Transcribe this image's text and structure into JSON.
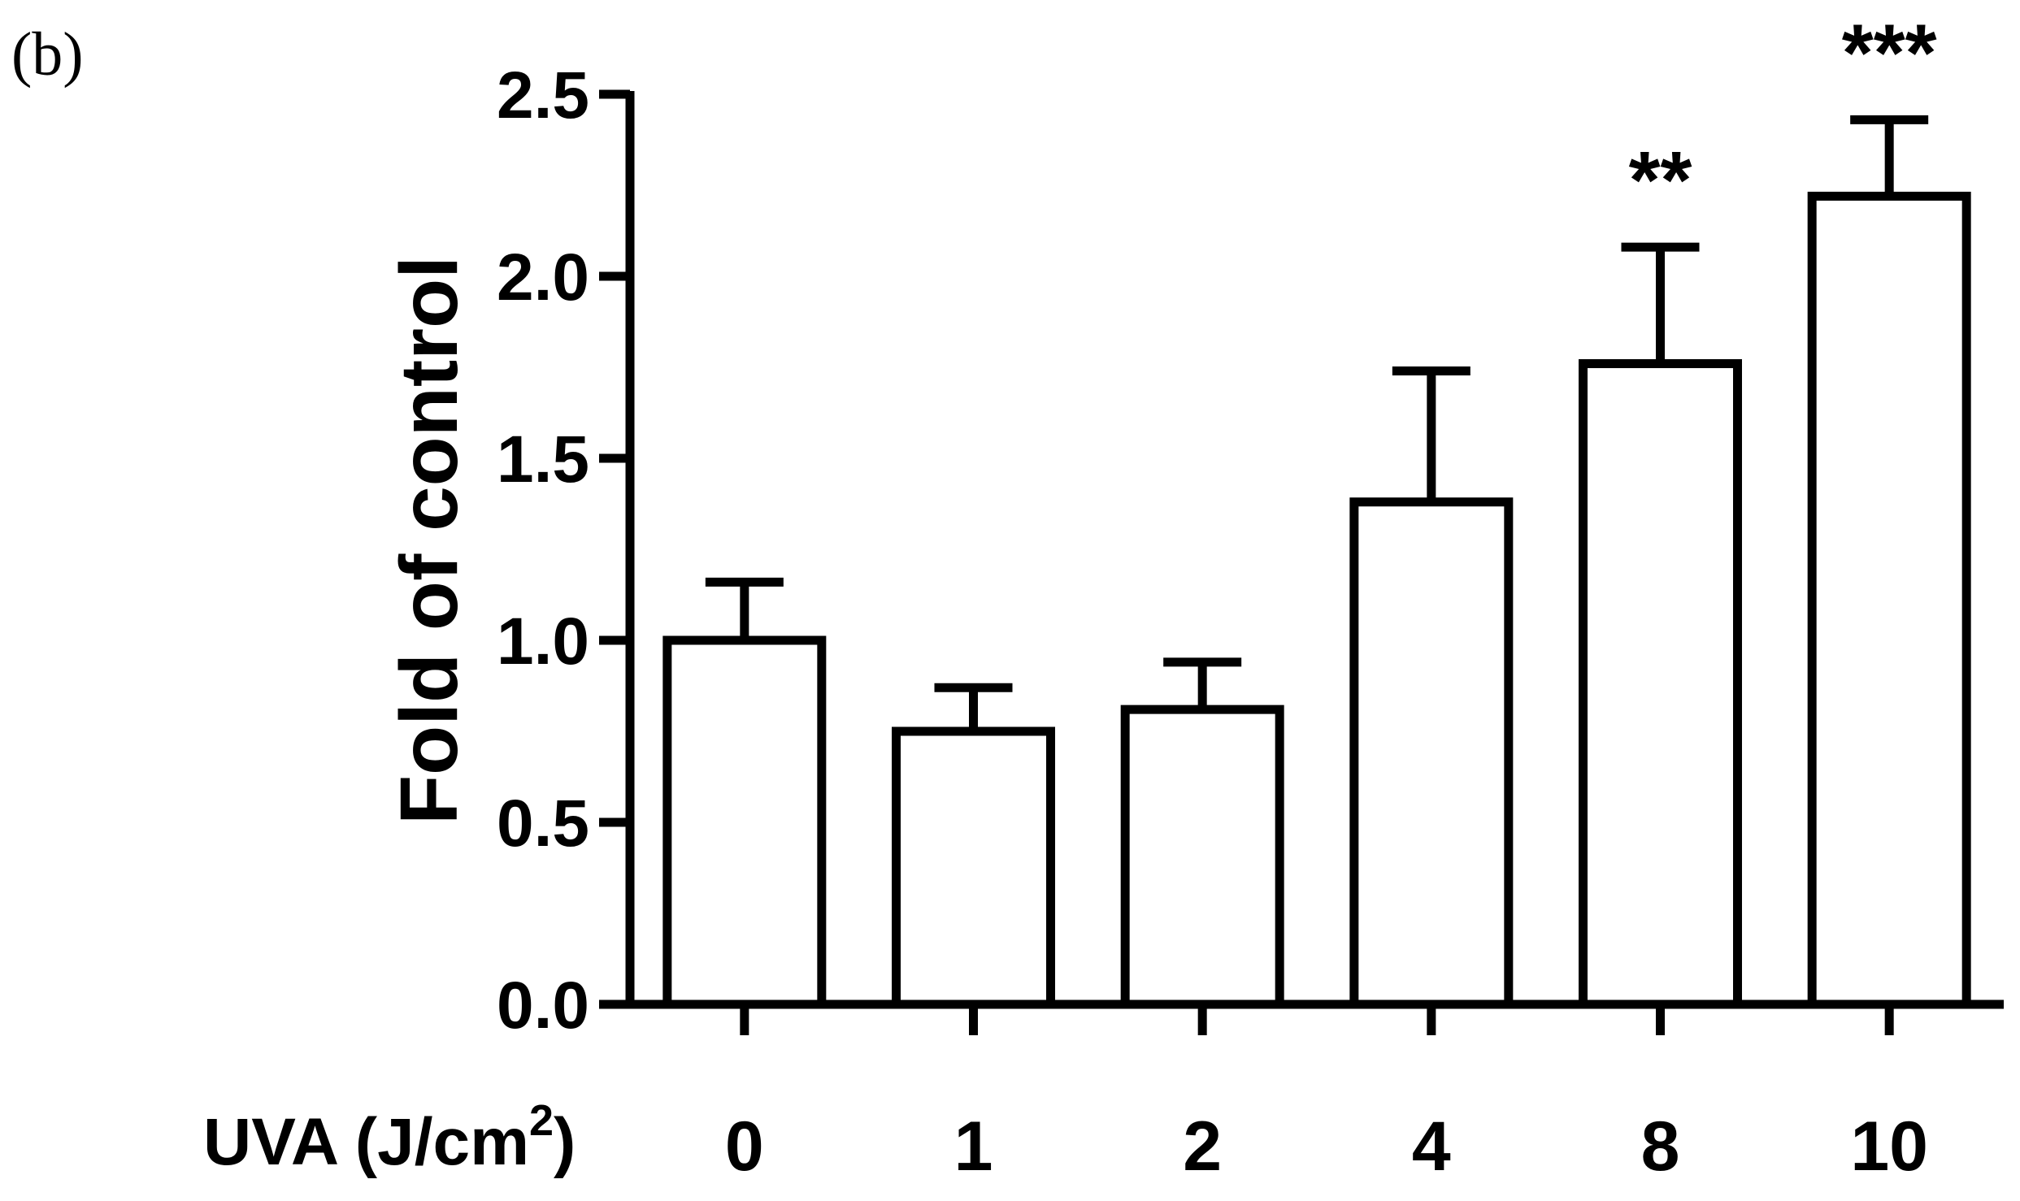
{
  "panel_label": "(b)",
  "chart_data": {
    "type": "bar",
    "title": "",
    "ylabel": "Fold of control",
    "xlabel": "UVA (J/cm",
    "xlabel_superscript": "2",
    "xlabel_suffix": ")",
    "categories": [
      "0",
      "1",
      "2",
      "4",
      "8",
      "10"
    ],
    "values": [
      1.0,
      0.75,
      0.81,
      1.38,
      1.76,
      2.22
    ],
    "errors": [
      0.16,
      0.12,
      0.13,
      0.36,
      0.32,
      0.21
    ],
    "significance": [
      "",
      "",
      "",
      "",
      "**",
      "***"
    ],
    "ylim": [
      0,
      2.5
    ],
    "yticks": [
      0.0,
      0.5,
      1.0,
      1.5,
      2.0,
      2.5
    ],
    "ytick_labels": [
      "0.0",
      "0.5",
      "1.0",
      "1.5",
      "2.0",
      "2.5"
    ],
    "grid": false,
    "legend": "none",
    "colors": {
      "bar_fill": "#ffffff",
      "bar_stroke": "#000000",
      "axis": "#000000"
    }
  }
}
